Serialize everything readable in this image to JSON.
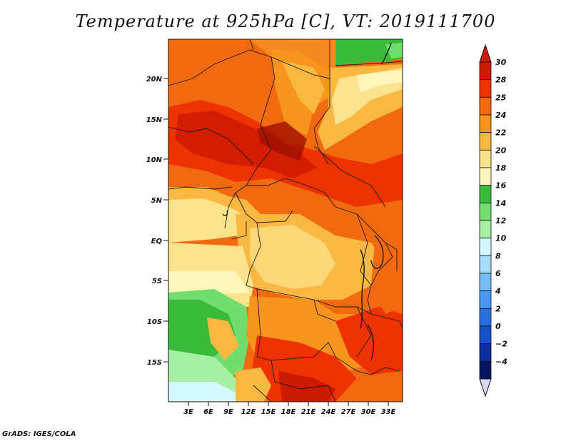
{
  "title": "Temperature at 925hPa [C], VT: 2019111700",
  "credit": "GrADS: IGES/COLA",
  "map": {
    "lat_labels": [
      "20N",
      "15N",
      "10N",
      "5N",
      "EQ",
      "5S",
      "10S",
      "15S"
    ],
    "lon_labels": [
      "3E",
      "6E",
      "9E",
      "12E",
      "15E",
      "18E",
      "21E",
      "24E",
      "27E",
      "30E",
      "33E"
    ]
  },
  "colorbar": {
    "levels": [
      "30",
      "28",
      "25",
      "24",
      "22",
      "20",
      "18",
      "16",
      "14",
      "12",
      "10",
      "8",
      "6",
      "4",
      "2",
      "0",
      "−2",
      "−4"
    ],
    "colors": [
      "#cc1a00",
      "#ee3300",
      "#f26a10",
      "#f7951c",
      "#f9b841",
      "#fde28e",
      "#fff5bd",
      "#3aba3a",
      "#6fde6f",
      "#a6f0a6",
      "#d6f8ff",
      "#a8dcff",
      "#78bcf8",
      "#4a99f0",
      "#2970dd",
      "#1550c8",
      "#0c2e98",
      "#06145e"
    ]
  }
}
